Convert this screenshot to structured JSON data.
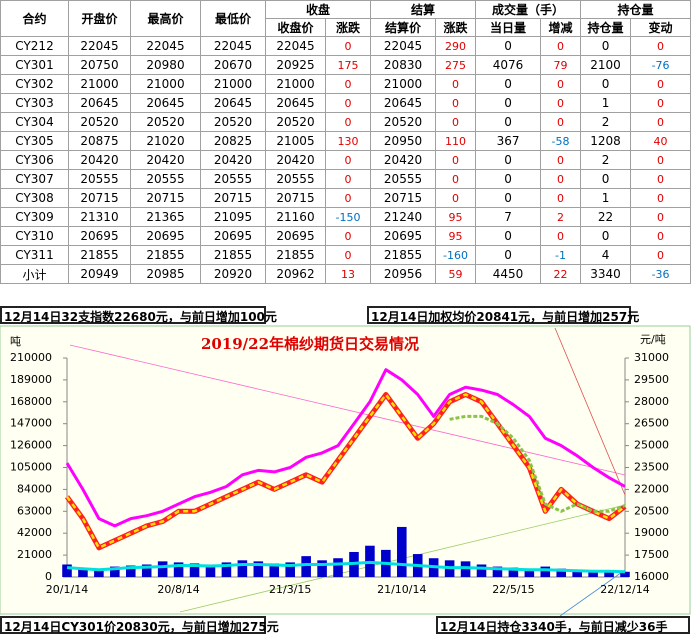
{
  "table": {
    "header1": [
      "合约",
      "开盘价",
      "最高价",
      "最低价",
      "收盘",
      "结算",
      "成交量（手）",
      "持仓量"
    ],
    "header2": [
      "收盘价",
      "涨跌",
      "结算价",
      "涨跌",
      "当日量",
      "增减",
      "持仓量",
      "变动"
    ],
    "rows": [
      [
        "CY212",
        22045,
        22045,
        22045,
        22045,
        0,
        22045,
        290,
        0,
        0,
        0,
        0
      ],
      [
        "CY301",
        20750,
        20980,
        20670,
        20925,
        175,
        20830,
        275,
        4076,
        79,
        2100,
        -76
      ],
      [
        "CY302",
        21000,
        21000,
        21000,
        21000,
        0,
        21000,
        0,
        0,
        0,
        0,
        0
      ],
      [
        "CY303",
        20645,
        20645,
        20645,
        20645,
        0,
        20645,
        0,
        0,
        0,
        1,
        0
      ],
      [
        "CY304",
        20520,
        20520,
        20520,
        20520,
        0,
        20520,
        0,
        0,
        0,
        2,
        0
      ],
      [
        "CY305",
        20875,
        21020,
        20825,
        21005,
        130,
        20950,
        110,
        367,
        -58,
        1208,
        40
      ],
      [
        "CY306",
        20420,
        20420,
        20420,
        20420,
        0,
        20420,
        0,
        0,
        0,
        2,
        0
      ],
      [
        "CY307",
        20555,
        20555,
        20555,
        20555,
        0,
        20555,
        0,
        0,
        0,
        0,
        0
      ],
      [
        "CY308",
        20715,
        20715,
        20715,
        20715,
        0,
        20715,
        0,
        0,
        0,
        1,
        0
      ],
      [
        "CY309",
        21310,
        21365,
        21095,
        21160,
        -150,
        21240,
        95,
        7,
        2,
        22,
        0
      ],
      [
        "CY310",
        20695,
        20695,
        20695,
        20695,
        0,
        20695,
        95,
        0,
        0,
        0,
        0
      ],
      [
        "CY311",
        21855,
        21855,
        21855,
        21855,
        0,
        21855,
        -160,
        0,
        -1,
        4,
        0
      ],
      [
        "小计",
        20949,
        20985,
        20920,
        20962,
        13,
        20956,
        59,
        4450,
        22,
        3340,
        -36
      ]
    ],
    "change_columns": [
      5,
      7,
      9,
      11
    ],
    "up_color": "#e00000",
    "down_color": "#0070c0"
  },
  "annotations": [
    "12月14日32支指数22680元，与前日增加100元",
    "12月14日加权均价20841元，与前日增加257元",
    "12月14日CY301价20830元，与前日增加275元",
    "12月14日持仓3340手，与前日减少36手"
  ],
  "chart_data": {
    "type": "combo",
    "title": "2019/22年棉纱期货日交易情况",
    "ylabel": "吨",
    "y2label": "元/吨",
    "categories": [
      "20/1/14",
      null,
      null,
      null,
      null,
      null,
      null,
      "20/8/14",
      null,
      null,
      null,
      null,
      null,
      null,
      "21/3/15",
      null,
      null,
      null,
      null,
      null,
      null,
      "21/10/14",
      null,
      null,
      null,
      null,
      null,
      null,
      "22/5/15",
      null,
      null,
      null,
      null,
      null,
      null,
      "22/12/14"
    ],
    "ylim": [
      0,
      210000
    ],
    "yticks": [
      0,
      21000,
      42000,
      63000,
      84000,
      105000,
      126000,
      147000,
      168000,
      189000,
      210000
    ],
    "y2lim": [
      16000,
      31000
    ],
    "y2ticks": [
      16000,
      17500,
      19000,
      20500,
      22000,
      23500,
      25000,
      26500,
      28000,
      29500,
      31000
    ],
    "grid": false,
    "series": [
      {
        "type": "bar",
        "color": "#0000cc",
        "values": [
          12000,
          9000,
          8000,
          10000,
          11000,
          12000,
          15000,
          14000,
          13000,
          12000,
          14000,
          16000,
          15000,
          13000,
          14000,
          20000,
          16000,
          18000,
          24000,
          30000,
          26000,
          48000,
          22000,
          18000,
          16000,
          15000,
          12000,
          10000,
          9000,
          8000,
          10000,
          8000,
          7000,
          6000,
          6000,
          5000
        ]
      },
      {
        "type": "line",
        "color": "#00e0e0",
        "values": [
          9000,
          8000,
          7000,
          8000,
          9000,
          9500,
          10000,
          11000,
          11000,
          10500,
          11000,
          12000,
          12000,
          11500,
          11000,
          12000,
          12000,
          12500,
          13000,
          14000,
          13000,
          12000,
          11000,
          10000,
          9000,
          9000,
          8500,
          8000,
          7500,
          7000,
          7000,
          6500,
          6000,
          5500,
          5500,
          5000
        ]
      },
      {
        "type": "line",
        "axis": "y2",
        "color": "#ff00ff",
        "values": [
          23800,
          22000,
          20000,
          19500,
          20000,
          20200,
          20500,
          21000,
          21500,
          21800,
          22200,
          23000,
          23300,
          23200,
          23500,
          24200,
          24500,
          25000,
          26500,
          28000,
          30200,
          29500,
          28500,
          27000,
          28500,
          29000,
          28800,
          28500,
          27800,
          27000,
          25500,
          25000,
          24300,
          23500,
          22800,
          22200
        ]
      },
      {
        "type": "line",
        "axis": "y2",
        "color": "#ff2020",
        "color2": "#ffe000",
        "values": [
          21500,
          20000,
          18000,
          18500,
          19000,
          19500,
          19800,
          20500,
          20500,
          21000,
          21500,
          22000,
          22500,
          22000,
          22500,
          23000,
          22500,
          24000,
          25500,
          27000,
          28500,
          27000,
          25500,
          26500,
          28000,
          28500,
          28000,
          26500,
          25000,
          23500,
          20500,
          22000,
          21000,
          20500,
          20000,
          20830
        ]
      },
      {
        "type": "line",
        "axis": "y2",
        "color": "#8bc34a",
        "values": [
          null,
          null,
          null,
          null,
          null,
          null,
          null,
          null,
          null,
          null,
          null,
          null,
          null,
          null,
          null,
          null,
          null,
          null,
          null,
          null,
          null,
          null,
          null,
          null,
          26800,
          27000,
          27000,
          26500,
          25500,
          24000,
          21000,
          20500,
          21000,
          20500,
          20500,
          20900
        ]
      }
    ]
  }
}
